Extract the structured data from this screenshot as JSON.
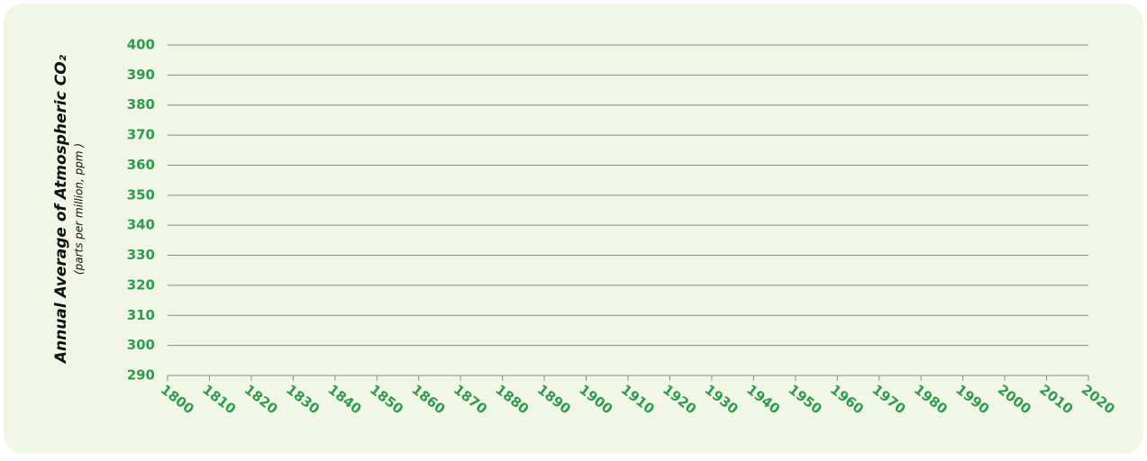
{
  "chart_data": {
    "type": "line",
    "ylabel": "Annual Average of Atmospheric CO₂",
    "ylabel_note": "(parts per million, ppm )",
    "series": [],
    "xlim": [
      1800,
      2020
    ],
    "xticks": [
      1800,
      1810,
      1820,
      1830,
      1840,
      1850,
      1860,
      1870,
      1880,
      1890,
      1900,
      1910,
      1920,
      1930,
      1940,
      1950,
      1960,
      1970,
      1980,
      1990,
      2000,
      2010,
      2020
    ],
    "ylim": [
      290,
      400
    ],
    "yticks": [
      290,
      300,
      310,
      320,
      330,
      340,
      350,
      360,
      370,
      380,
      390,
      400
    ],
    "grid": true
  }
}
